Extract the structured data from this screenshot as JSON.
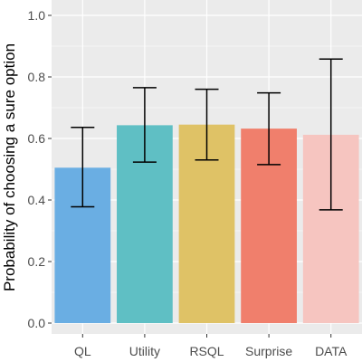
{
  "chart_data": {
    "type": "bar",
    "categories": [
      "QL",
      "Utility",
      "RSQL",
      "Surprise",
      "DATA"
    ],
    "values": [
      0.505,
      0.643,
      0.645,
      0.632,
      0.612
    ],
    "error_low": [
      0.378,
      0.523,
      0.53,
      0.515,
      0.368
    ],
    "error_high": [
      0.636,
      0.765,
      0.76,
      0.748,
      0.858
    ],
    "colors": [
      "#6aaee3",
      "#5fbfc4",
      "#dfc266",
      "#f07f6c",
      "#f6c5c0"
    ],
    "ylabel": "Probability of choosing a sure option",
    "xlabel": "",
    "ylim": [
      0,
      1
    ],
    "yticks": [
      0.0,
      0.2,
      0.4,
      0.6,
      0.8,
      1.0
    ],
    "ytick_labels": [
      "0.0",
      "0.2",
      "0.4",
      "0.6",
      "0.8",
      "1.0"
    ],
    "panel_background": "#ebebeb",
    "gridline_color": "#ffffff",
    "grid": true,
    "legend": "none"
  }
}
